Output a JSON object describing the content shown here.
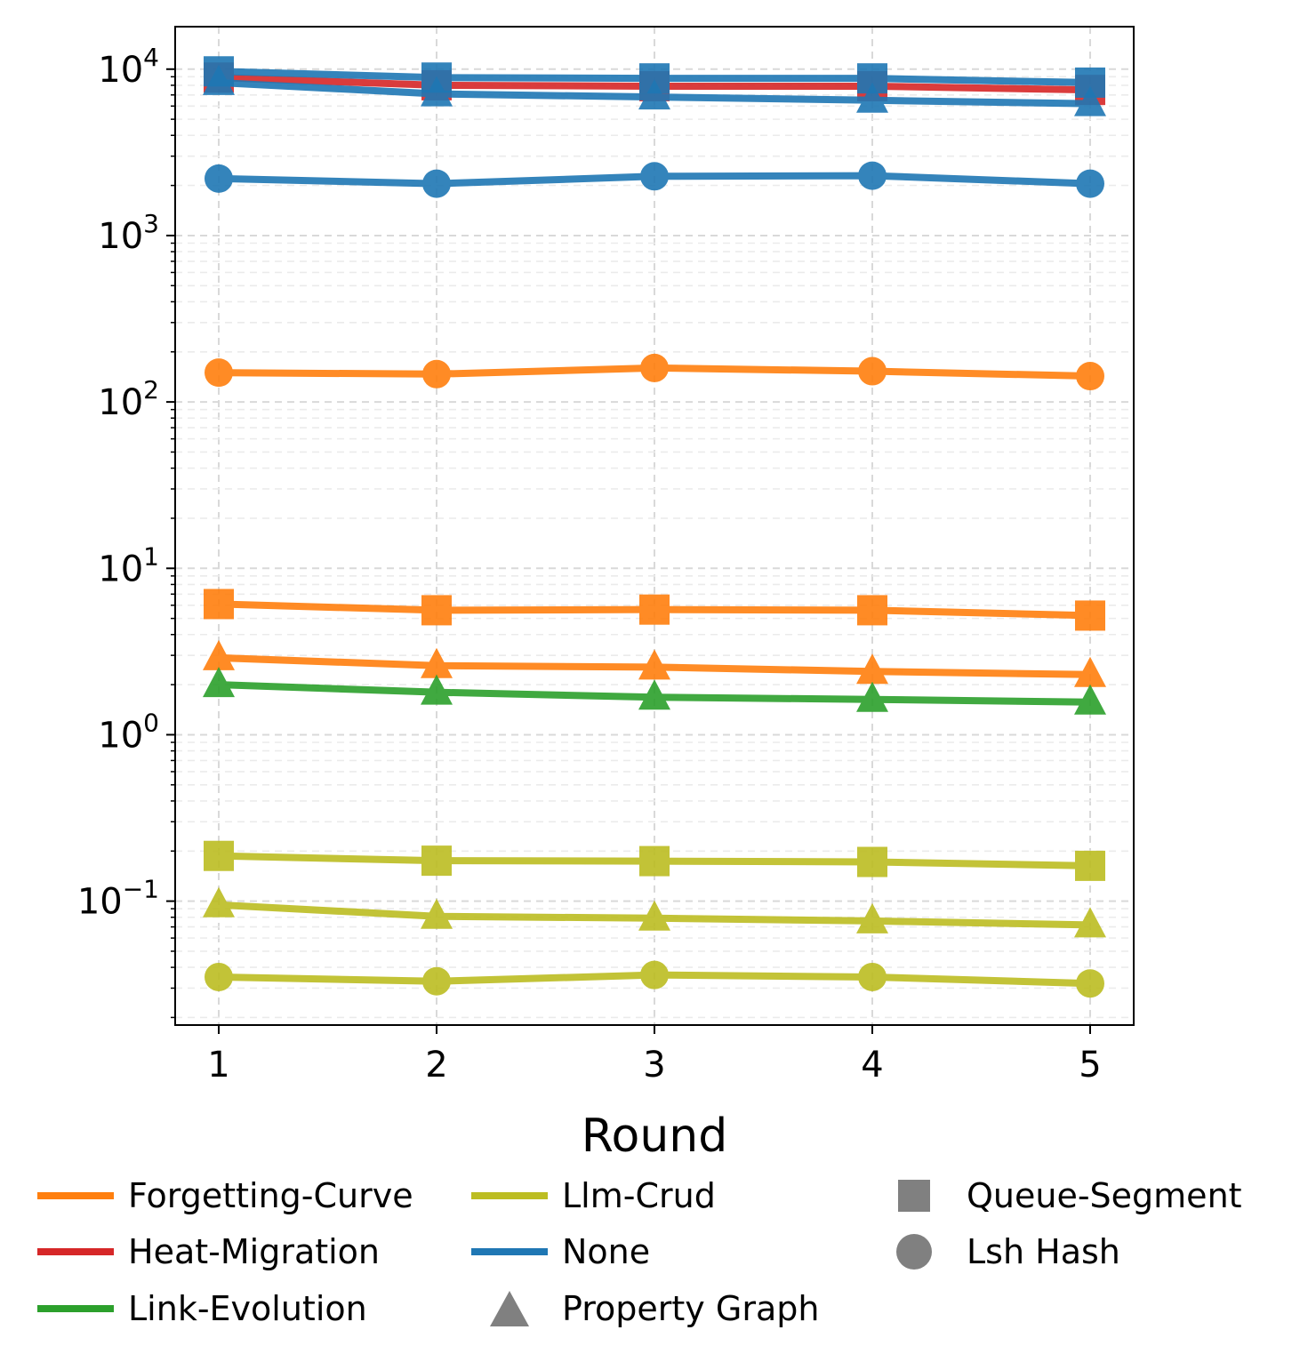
{
  "chart_data": {
    "type": "line",
    "xlabel": "Round",
    "ylabel": "",
    "yscale": "log",
    "ylim": [
      0.018,
      18000
    ],
    "x": [
      1,
      2,
      3,
      4,
      5
    ],
    "x_tick_labels": [
      "1",
      "2",
      "3",
      "4",
      "5"
    ],
    "y_tick_labels": [
      {
        "value": 0.1,
        "base": "10",
        "exp": "−1"
      },
      {
        "value": 1,
        "base": "10",
        "exp": "0"
      },
      {
        "value": 10,
        "base": "10",
        "exp": "1"
      },
      {
        "value": 100,
        "base": "10",
        "exp": "2"
      },
      {
        "value": 1000,
        "base": "10",
        "exp": "3"
      },
      {
        "value": 10000,
        "base": "10",
        "exp": "4"
      }
    ],
    "grid": true,
    "series": [
      {
        "method": "Heat-Migration",
        "structure": "Queue-Segment",
        "color": "#d62728",
        "marker": "square",
        "values": [
          8900,
          8000,
          7900,
          7900,
          7500
        ]
      },
      {
        "method": "Forgetting-Curve",
        "structure": "Queue-Segment",
        "color": "#ff7f0e",
        "marker": "square",
        "values": [
          6.1,
          5.6,
          5.65,
          5.6,
          5.2
        ]
      },
      {
        "method": "Forgetting-Curve",
        "structure": "Property Graph",
        "color": "#ff7f0e",
        "marker": "triangle",
        "values": [
          2.9,
          2.6,
          2.55,
          2.4,
          2.3
        ]
      },
      {
        "method": "Forgetting-Curve",
        "structure": "Lsh Hash",
        "color": "#ff7f0e",
        "marker": "circle",
        "values": [
          150,
          147,
          160,
          153,
          143
        ]
      },
      {
        "method": "Link-Evolution",
        "structure": "Property Graph",
        "color": "#2ca02c",
        "marker": "triangle",
        "values": [
          2.0,
          1.8,
          1.68,
          1.63,
          1.57
        ]
      },
      {
        "method": "Llm-Crud",
        "structure": "Queue-Segment",
        "color": "#bcbd22",
        "marker": "square",
        "values": [
          0.187,
          0.175,
          0.174,
          0.172,
          0.163
        ]
      },
      {
        "method": "Llm-Crud",
        "structure": "Property Graph",
        "color": "#bcbd22",
        "marker": "triangle",
        "values": [
          0.095,
          0.081,
          0.079,
          0.076,
          0.072
        ]
      },
      {
        "method": "Llm-Crud",
        "structure": "Lsh Hash",
        "color": "#bcbd22",
        "marker": "circle",
        "values": [
          0.035,
          0.033,
          0.036,
          0.035,
          0.032
        ]
      },
      {
        "method": "None",
        "structure": "Lsh Hash",
        "color": "#1f77b4",
        "marker": "circle",
        "values": [
          2200,
          2050,
          2270,
          2290,
          2050
        ]
      },
      {
        "method": "None",
        "structure": "Property Graph",
        "color": "#1f77b4",
        "marker": "triangle",
        "values": [
          8300,
          7100,
          6800,
          6500,
          6200
        ]
      },
      {
        "method": "None",
        "structure": "Queue-Segment",
        "color": "#1f77b4",
        "marker": "square",
        "values": [
          9700,
          8900,
          8800,
          8800,
          8300
        ]
      }
    ],
    "legend": {
      "position": "bottom",
      "methods": [
        {
          "label": "Forgetting-Curve",
          "color": "#ff7f0e"
        },
        {
          "label": "Heat-Migration",
          "color": "#d62728"
        },
        {
          "label": "Link-Evolution",
          "color": "#2ca02c"
        },
        {
          "label": "Llm-Crud",
          "color": "#bcbd22"
        },
        {
          "label": "None",
          "color": "#1f77b4"
        }
      ],
      "structures": [
        {
          "label": "Property Graph",
          "marker": "triangle"
        },
        {
          "label": "Queue-Segment",
          "marker": "square"
        },
        {
          "label": "Lsh Hash",
          "marker": "circle"
        }
      ]
    }
  }
}
